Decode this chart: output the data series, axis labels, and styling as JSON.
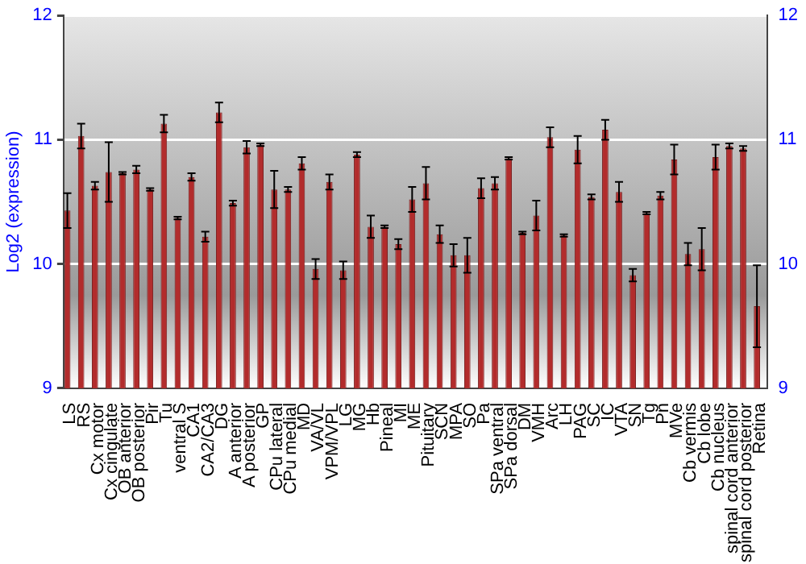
{
  "chart_data": {
    "type": "bar",
    "ylabel": "Log2 (expression)",
    "categories": [
      "LS",
      "RS",
      "Cx motor",
      "Cx cingulate",
      "OB anterior",
      "OB posterior",
      "Pir",
      "Tu",
      "ventral S",
      "CA1",
      "CA2/CA3",
      "DG",
      "A anterior",
      "A posterior",
      "GP",
      "CPu lateral",
      "CPu medial",
      "MD",
      "VA/VL",
      "VPM/VPL",
      "LG",
      "MG",
      "Hb",
      "Pineal",
      "MI",
      "ME",
      "Pituitary",
      "SCN",
      "MPA",
      "SO",
      "Pa",
      "SPa ventral",
      "SPa dorsal",
      "DM",
      "VMH",
      "Arc",
      "LH",
      "PAG",
      "SC",
      "IC",
      "VTA",
      "SN",
      "Tg",
      "Pn",
      "MVe",
      "Cb vermis",
      "Cb lobe",
      "Cb nucleus",
      "spinal cord anterior",
      "spinal cord posterior",
      "Retina"
    ],
    "values": [
      10.43,
      11.03,
      10.63,
      10.74,
      10.73,
      10.76,
      10.6,
      11.13,
      10.37,
      10.7,
      10.22,
      11.22,
      10.49,
      10.94,
      10.96,
      10.6,
      10.6,
      10.81,
      9.96,
      10.66,
      9.95,
      10.88,
      10.3,
      10.3,
      10.16,
      10.52,
      10.65,
      10.24,
      10.07,
      10.07,
      10.61,
      10.65,
      10.85,
      10.25,
      10.39,
      11.02,
      10.23,
      10.92,
      10.54,
      11.08,
      10.58,
      9.91,
      10.41,
      10.55,
      10.84,
      10.08,
      10.12,
      10.86,
      10.95,
      10.93,
      9.66
    ],
    "errors": [
      0.14,
      0.1,
      0.03,
      0.24,
      0.01,
      0.03,
      0.01,
      0.07,
      0.01,
      0.03,
      0.04,
      0.08,
      0.02,
      0.05,
      0.01,
      0.15,
      0.02,
      0.05,
      0.08,
      0.06,
      0.07,
      0.02,
      0.09,
      0.01,
      0.04,
      0.1,
      0.13,
      0.07,
      0.09,
      0.14,
      0.08,
      0.05,
      0.01,
      0.01,
      0.12,
      0.08,
      0.01,
      0.11,
      0.02,
      0.08,
      0.08,
      0.05,
      0.01,
      0.03,
      0.12,
      0.09,
      0.17,
      0.1,
      0.02,
      0.02,
      0.33
    ],
    "color": "#b22c2c",
    "ylim": [
      9,
      12
    ],
    "yticks": [
      9,
      10,
      11,
      12
    ],
    "y2lim": [
      9,
      12
    ],
    "y2ticks": [
      9,
      10,
      11,
      12
    ],
    "grid": "y",
    "legend": false
  }
}
